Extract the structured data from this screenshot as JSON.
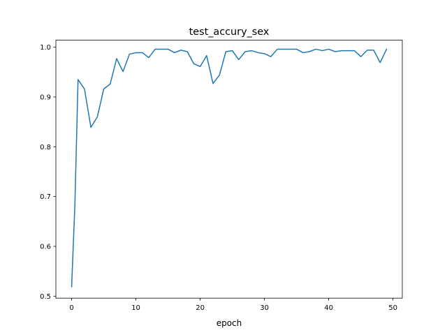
{
  "chart_data": {
    "type": "line",
    "title": "test_accury_sex",
    "xlabel": "epoch",
    "ylabel": "",
    "xlim": [
      -2.45,
      51.45
    ],
    "ylim": [
      0.496,
      1.014
    ],
    "x_ticks": [
      0,
      10,
      20,
      30,
      40,
      50
    ],
    "y_ticks": [
      0.5,
      0.6,
      0.7,
      0.8,
      0.9,
      1.0
    ],
    "x_tick_labels": [
      "0",
      "10",
      "20",
      "30",
      "40",
      "50"
    ],
    "y_tick_labels": [
      "0.5",
      "0.6",
      "0.7",
      "0.8",
      "0.9",
      "1.0"
    ],
    "grid": false,
    "legend": "none",
    "line_color": "#1f77b4",
    "series": [
      {
        "x": [
          0,
          0.5,
          1,
          2,
          3,
          4,
          5,
          6,
          7,
          8,
          9,
          10,
          11,
          12,
          13,
          14,
          15,
          16,
          17,
          18,
          19,
          20,
          21,
          22,
          23,
          24,
          25,
          26,
          27,
          28,
          29,
          30,
          31,
          32,
          33,
          34,
          35,
          36,
          37,
          38,
          39,
          40,
          41,
          42,
          43,
          44,
          45,
          46,
          47,
          48,
          49
        ],
        "values": [
          0.519,
          0.68,
          0.935,
          0.916,
          0.839,
          0.86,
          0.916,
          0.926,
          0.977,
          0.951,
          0.986,
          0.989,
          0.989,
          0.979,
          0.996,
          0.996,
          0.996,
          0.989,
          0.994,
          0.991,
          0.967,
          0.961,
          0.983,
          0.927,
          0.944,
          0.991,
          0.993,
          0.975,
          0.991,
          0.993,
          0.989,
          0.987,
          0.981,
          0.996,
          0.996,
          0.996,
          0.996,
          0.989,
          0.991,
          0.996,
          0.993,
          0.996,
          0.991,
          0.993,
          0.993,
          0.993,
          0.981,
          0.994,
          0.994,
          0.969,
          0.996
        ]
      }
    ]
  }
}
